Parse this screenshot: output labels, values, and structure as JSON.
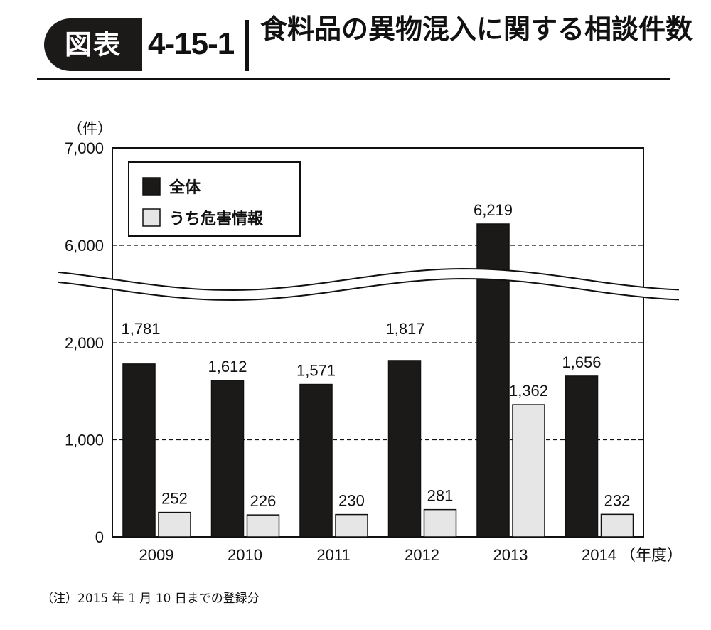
{
  "header": {
    "badge": "図表",
    "figure_number": "4-15-1",
    "title": "食料品の異物混入に関する相談件数"
  },
  "chart_data": {
    "type": "bar",
    "title": "食料品の異物混入に関する相談件数",
    "y_unit": "（件）",
    "x_unit": "（年度）",
    "categories": [
      "2009",
      "2010",
      "2011",
      "2012",
      "2013",
      "2014"
    ],
    "series": [
      {
        "name": "全体",
        "color": "#1c1a19",
        "values": [
          1781,
          1612,
          1571,
          1817,
          6219,
          1656
        ],
        "labels": [
          "1,781",
          "1,612",
          "1,571",
          "1,817",
          "6,219",
          "1,656"
        ]
      },
      {
        "name": "うち危害情報",
        "color": "#e6e6e6",
        "values": [
          252,
          226,
          230,
          281,
          1362,
          232
        ],
        "labels": [
          "252",
          "226",
          "230",
          "281",
          "1,362",
          "232"
        ]
      }
    ],
    "y_ticks": [
      {
        "value": 0,
        "label": "0"
      },
      {
        "value": 1000,
        "label": "1,000"
      },
      {
        "value": 2000,
        "label": "2,000"
      },
      {
        "value": 6000,
        "label": "6,000"
      },
      {
        "value": 7000,
        "label": "7,000"
      }
    ],
    "axis_break": {
      "from": 2000,
      "to": 6000
    },
    "ylim": [
      0,
      7000
    ],
    "grid": "dashed",
    "legend_position": "top-left"
  },
  "note": "（注）2015 年 1 月 10 日までの登録分"
}
